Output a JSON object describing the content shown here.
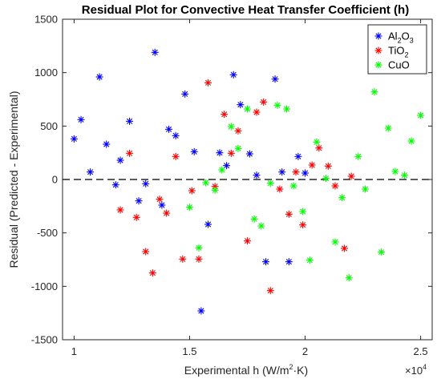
{
  "chart_data": {
    "type": "scatter",
    "title": "Residual Plot for Convective Heat Transfer Coefficient (h)",
    "xlabel_main": "Experimental  h  (W/m",
    "xlabel_sup": "2",
    "xlabel_tail": "·K)",
    "ylabel": "Residual (Predicted - Experimental)",
    "x_multiplier_base": "×10",
    "x_multiplier_exp": "4",
    "xlim": [
      0.95,
      2.55
    ],
    "ylim": [
      -1500,
      1500
    ],
    "x_ticks": [
      1,
      1.5,
      2,
      2.5
    ],
    "x_tick_labels": [
      "1",
      "1.5",
      "2",
      "2.5"
    ],
    "y_ticks": [
      -1500,
      -1000,
      -500,
      0,
      500,
      1000,
      1500
    ],
    "y_tick_labels": [
      "-1500",
      "-1000",
      "-500",
      "0",
      "500",
      "1000",
      "1500"
    ],
    "zero_line": true,
    "grid": false,
    "legend_position": "top-right",
    "series": [
      {
        "name": "Al2O3",
        "label_main": "Al",
        "label_sub1": "2",
        "label_mid": "O",
        "label_sub2": "3",
        "color": "#0000ff",
        "points": [
          [
            1.0,
            380
          ],
          [
            1.03,
            560
          ],
          [
            1.07,
            70
          ],
          [
            1.11,
            960
          ],
          [
            1.14,
            330
          ],
          [
            1.18,
            -50
          ],
          [
            1.2,
            180
          ],
          [
            1.24,
            545
          ],
          [
            1.28,
            -200
          ],
          [
            1.31,
            -40
          ],
          [
            1.35,
            1190
          ],
          [
            1.38,
            -240
          ],
          [
            1.41,
            470
          ],
          [
            1.44,
            410
          ],
          [
            1.48,
            800
          ],
          [
            1.52,
            260
          ],
          [
            1.55,
            -1230
          ],
          [
            1.58,
            -420
          ],
          [
            1.63,
            250
          ],
          [
            1.66,
            130
          ],
          [
            1.69,
            980
          ],
          [
            1.72,
            700
          ],
          [
            1.76,
            240
          ],
          [
            1.79,
            40
          ],
          [
            1.83,
            -770
          ],
          [
            1.87,
            940
          ],
          [
            1.9,
            70
          ],
          [
            1.93,
            -770
          ],
          [
            1.97,
            215
          ],
          [
            2.0,
            60
          ]
        ]
      },
      {
        "name": "TiO2",
        "label_main": "TiO",
        "label_sub1": "2",
        "label_mid": "",
        "label_sub2": "",
        "color": "#ff0000",
        "points": [
          [
            1.2,
            -285
          ],
          [
            1.24,
            245
          ],
          [
            1.27,
            -355
          ],
          [
            1.31,
            -675
          ],
          [
            1.34,
            -875
          ],
          [
            1.37,
            -185
          ],
          [
            1.4,
            -315
          ],
          [
            1.44,
            215
          ],
          [
            1.47,
            -745
          ],
          [
            1.51,
            -105
          ],
          [
            1.54,
            -745
          ],
          [
            1.58,
            905
          ],
          [
            1.61,
            -65
          ],
          [
            1.65,
            610
          ],
          [
            1.68,
            245
          ],
          [
            1.71,
            455
          ],
          [
            1.75,
            -575
          ],
          [
            1.79,
            630
          ],
          [
            1.82,
            725
          ],
          [
            1.85,
            -1040
          ],
          [
            1.89,
            -90
          ],
          [
            1.93,
            -325
          ],
          [
            1.96,
            70
          ],
          [
            1.99,
            -425
          ],
          [
            2.03,
            135
          ],
          [
            2.06,
            295
          ],
          [
            2.1,
            125
          ],
          [
            2.13,
            -60
          ],
          [
            2.17,
            -645
          ],
          [
            2.2,
            30
          ]
        ]
      },
      {
        "name": "CuO",
        "label_main": "CuO",
        "label_sub1": "",
        "label_mid": "",
        "label_sub2": "",
        "color": "#00ff00",
        "points": [
          [
            1.5,
            -260
          ],
          [
            1.54,
            -640
          ],
          [
            1.57,
            -30
          ],
          [
            1.61,
            -100
          ],
          [
            1.64,
            90
          ],
          [
            1.68,
            495
          ],
          [
            1.71,
            290
          ],
          [
            1.75,
            660
          ],
          [
            1.78,
            -370
          ],
          [
            1.81,
            -435
          ],
          [
            1.85,
            -35
          ],
          [
            1.88,
            695
          ],
          [
            1.92,
            660
          ],
          [
            1.95,
            -60
          ],
          [
            1.99,
            -300
          ],
          [
            2.02,
            -755
          ],
          [
            2.05,
            350
          ],
          [
            2.09,
            10
          ],
          [
            2.13,
            -585
          ],
          [
            2.16,
            -170
          ],
          [
            2.19,
            -920
          ],
          [
            2.23,
            215
          ],
          [
            2.26,
            -90
          ],
          [
            2.3,
            820
          ],
          [
            2.33,
            -680
          ],
          [
            2.36,
            480
          ],
          [
            2.39,
            75
          ],
          [
            2.43,
            40
          ],
          [
            2.46,
            360
          ],
          [
            2.5,
            600
          ]
        ]
      }
    ]
  }
}
